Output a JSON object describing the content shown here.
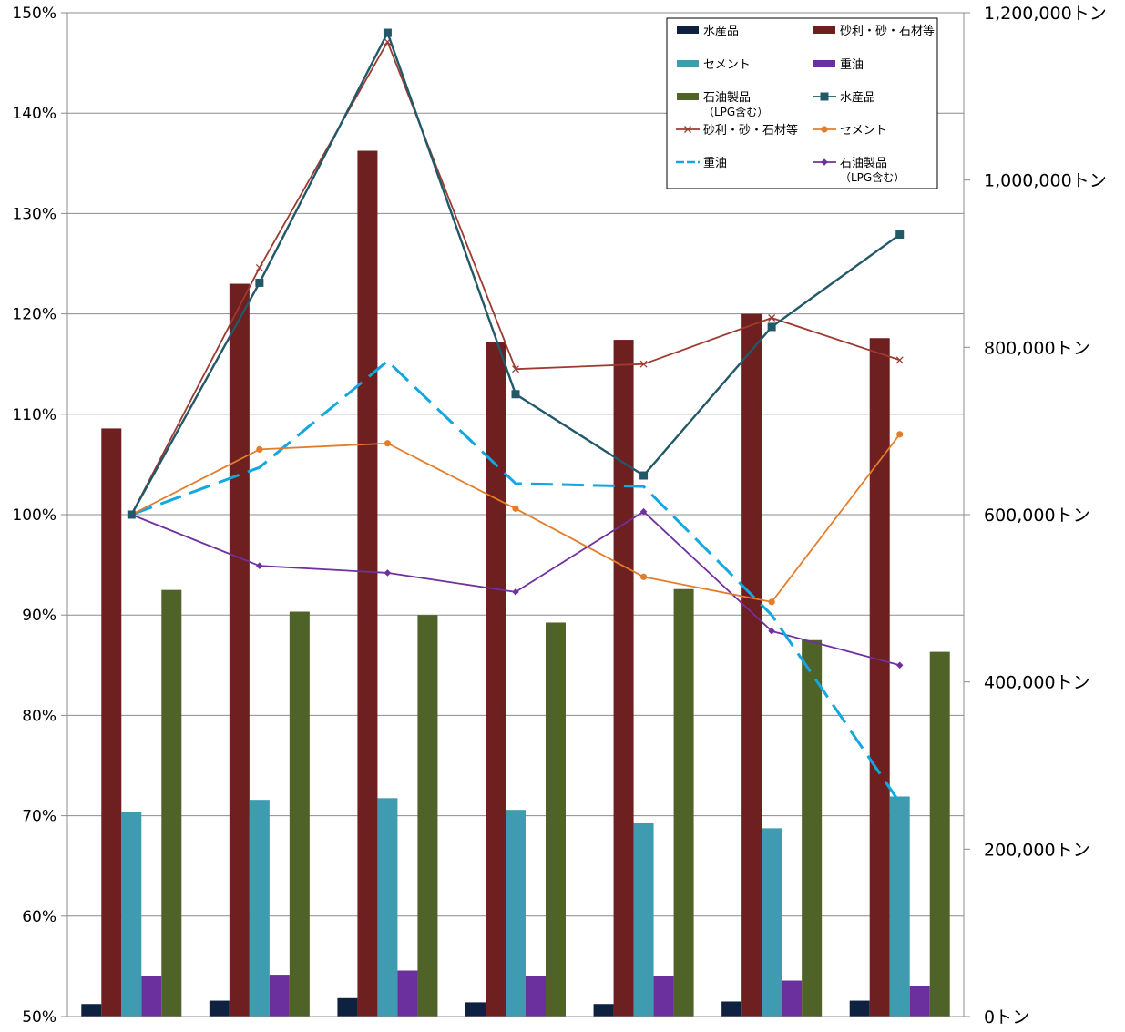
{
  "chart_data": {
    "type": "bar+line",
    "title": "",
    "xlabel": "",
    "categories": [
      "",
      "",
      "",
      "",
      "",
      "",
      ""
    ],
    "y_left": {
      "range": [
        50,
        150
      ],
      "ticks": [
        "50%",
        "60%",
        "70%",
        "80%",
        "90%",
        "100%",
        "110%",
        "120%",
        "130%",
        "140%",
        "150%"
      ]
    },
    "y_right": {
      "range": [
        0,
        1200000
      ],
      "ticks": [
        "0トン",
        "200,000トン",
        "400,000トン",
        "600,000トン",
        "800,000トン",
        "1,000,000トン",
        "1,200,000トン"
      ]
    },
    "grid": true,
    "legend_position": "top-right",
    "bar_series": [
      {
        "name": "水産品",
        "color": "#0f2140",
        "values": [
          15000,
          19000,
          22000,
          17000,
          15000,
          18000,
          19000
        ]
      },
      {
        "name": "砂利・砂・石材等",
        "color": "#6e1f1f",
        "values": [
          703000,
          876000,
          1035000,
          806000,
          809000,
          840000,
          811000
        ]
      },
      {
        "name": "セメント",
        "color": "#3f9bb0",
        "values": [
          245000,
          259000,
          261000,
          247000,
          231000,
          225000,
          263000
        ]
      },
      {
        "name": "重油",
        "color": "#6b2f9e",
        "values": [
          48000,
          50000,
          55000,
          49000,
          49000,
          43000,
          36000
        ]
      },
      {
        "name": "石油製品\n（LPG含む）",
        "color": "#4f6228",
        "values": [
          510000,
          484000,
          480000,
          471000,
          511000,
          450000,
          436000
        ]
      }
    ],
    "line_series": [
      {
        "name": "水産品",
        "color": "#215968",
        "marker": "square",
        "dash": "",
        "values": [
          100,
          123.1,
          148.0,
          112.0,
          103.9,
          118.7,
          127.9
        ]
      },
      {
        "name": "砂利・砂・石材等",
        "color": "#9c3b31",
        "marker": "x",
        "dash": "",
        "values": [
          100,
          124.6,
          147.1,
          114.5,
          115.0,
          119.6,
          115.4
        ]
      },
      {
        "name": "セメント",
        "color": "#e27d2b",
        "marker": "circle",
        "dash": "",
        "values": [
          100,
          106.5,
          107.1,
          100.6,
          93.8,
          91.3,
          108.0
        ]
      },
      {
        "name": "重油",
        "color": "#12a7df",
        "marker": "none",
        "dash": "24 10",
        "values": [
          100,
          104.7,
          115.3,
          103.1,
          102.8,
          90.0,
          71.3
        ]
      },
      {
        "name": "石油製品\n（LPG含む）",
        "color": "#7030a0",
        "marker": "diamond",
        "dash": "",
        "values": [
          100,
          94.9,
          94.2,
          92.3,
          100.3,
          88.4,
          85.0
        ]
      }
    ],
    "legend": [
      {
        "text": "水産品",
        "kind": "bar",
        "series": 0
      },
      {
        "text": "砂利・砂・石材等",
        "kind": "bar",
        "series": 1
      },
      {
        "text": "セメント",
        "kind": "bar",
        "series": 2
      },
      {
        "text": "重油",
        "kind": "bar",
        "series": 3
      },
      {
        "text": "石油製品",
        "sub": "（LPG含む）",
        "kind": "bar",
        "series": 4
      },
      {
        "text": "水産品",
        "kind": "line",
        "series": 0
      },
      {
        "text": "砂利・砂・石材等",
        "kind": "line",
        "series": 1
      },
      {
        "text": "セメント",
        "kind": "line",
        "series": 2
      },
      {
        "text": "重油",
        "kind": "line",
        "series": 3
      },
      {
        "text": "石油製品",
        "sub": "（LPG含む）",
        "kind": "line",
        "series": 4
      }
    ]
  }
}
